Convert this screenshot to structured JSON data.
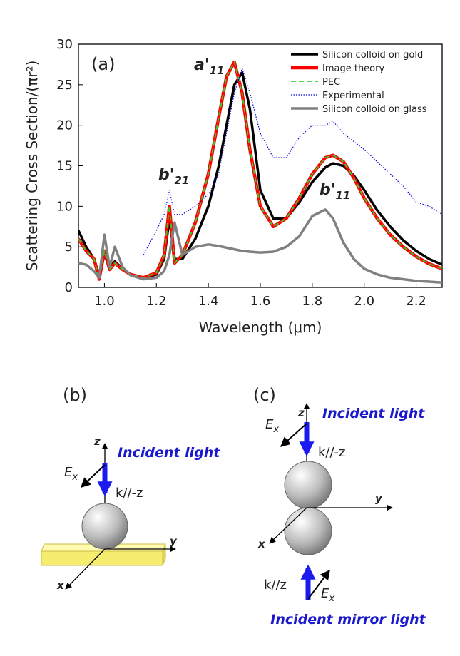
{
  "chart_data": {
    "type": "line",
    "panel_label": "(a)",
    "x_label": "Wavelength (μm)",
    "y_label": "Scattering Cross Section/(πr²)",
    "annotations": [
      {
        "main": "a'",
        "sub": "11"
      },
      {
        "main": "b'",
        "sub": "21"
      },
      {
        "main": "b'",
        "sub": "11"
      }
    ],
    "x": [
      0.9,
      0.93,
      0.96,
      0.98,
      1.0,
      1.02,
      1.04,
      1.07,
      1.1,
      1.15,
      1.2,
      1.23,
      1.25,
      1.27,
      1.3,
      1.35,
      1.4,
      1.44,
      1.47,
      1.5,
      1.53,
      1.56,
      1.6,
      1.65,
      1.7,
      1.75,
      1.8,
      1.85,
      1.88,
      1.92,
      1.96,
      2.0,
      2.05,
      2.1,
      2.15,
      2.2,
      2.25,
      2.3
    ],
    "series": [
      {
        "name": "Silicon colloid on gold",
        "color": "#000000",
        "style": "solid",
        "values": [
          7,
          5,
          3.5,
          1.5,
          4,
          2.5,
          3.2,
          2.3,
          1.6,
          1.1,
          1.6,
          3.5,
          8.5,
          3.5,
          3.5,
          6,
          10,
          15,
          20,
          25,
          26.5,
          22,
          12,
          8.5,
          8.5,
          10.5,
          13,
          14.8,
          15.3,
          15,
          13.8,
          12,
          9.5,
          7.5,
          5.8,
          4.5,
          3.5,
          2.8
        ]
      },
      {
        "name": "Image theory",
        "color": "#ff0000",
        "style": "solid",
        "values": [
          6,
          4.5,
          3.5,
          1,
          4.5,
          2.2,
          3,
          2.2,
          1.6,
          1.2,
          1.8,
          4,
          10,
          3,
          4,
          8,
          14,
          21,
          26,
          27.8,
          24,
          17,
          10,
          7.5,
          8.5,
          11,
          14,
          16,
          16.3,
          15.5,
          13.5,
          11,
          8.5,
          6.5,
          5,
          3.8,
          2.9,
          2.3
        ]
      },
      {
        "name": "PEC",
        "color": "#33cc33",
        "style": "dashed",
        "values": [
          6,
          4.5,
          3.5,
          1,
          4.5,
          2.2,
          3,
          2.2,
          1.6,
          1.2,
          1.8,
          4,
          10,
          3,
          4,
          8,
          14,
          21,
          26,
          27.8,
          24,
          17,
          10,
          7.5,
          8.5,
          11,
          14,
          16,
          16.3,
          15.5,
          13.5,
          11,
          8.5,
          6.5,
          5,
          3.8,
          2.9,
          2.3
        ]
      },
      {
        "name": "Experimental",
        "color": "#0000dd",
        "style": "dotted",
        "values": [
          null,
          null,
          null,
          null,
          null,
          null,
          null,
          null,
          null,
          4,
          7,
          9,
          12,
          9,
          9,
          10,
          11.5,
          14,
          19,
          24,
          27,
          24,
          19,
          16,
          16,
          18.5,
          20,
          20,
          20.5,
          19,
          18,
          17,
          15.5,
          14,
          12.5,
          10.5,
          10,
          9
        ]
      },
      {
        "name": "Silicon colloid on glass",
        "color": "#808080",
        "style": "solid",
        "values": [
          3,
          2.8,
          2,
          1.2,
          6.5,
          2.5,
          5,
          2.5,
          1.5,
          1,
          1.2,
          2,
          4,
          8,
          4,
          5,
          5.3,
          5.1,
          4.9,
          4.7,
          4.5,
          4.4,
          4.3,
          4.4,
          5,
          6.3,
          8.8,
          9.6,
          8.5,
          5.5,
          3.5,
          2.3,
          1.6,
          1.2,
          1,
          0.8,
          0.7,
          0.6
        ]
      }
    ],
    "xlim": [
      0.9,
      2.3
    ],
    "xticks": [
      {
        "value": 1,
        "label": "1.0"
      },
      1.2,
      1.4,
      1.6,
      1.8,
      {
        "value": 2,
        "label": "2.0"
      },
      2.2
    ],
    "ylim": [
      0,
      30
    ],
    "yticks": [
      0,
      5,
      10,
      15,
      20,
      25,
      30
    ],
    "legend": "upper right"
  },
  "panels": {
    "b": {
      "label": "(b)",
      "z": "z",
      "y": "y",
      "x": "x",
      "E_x": {
        "main": "E",
        "sub": "x"
      },
      "incident": "Incident light",
      "k": "k//-z"
    },
    "c": {
      "label": "(c)",
      "z": "z",
      "y": "y",
      "x": "x",
      "E_x": {
        "main": "E",
        "sub": "x"
      },
      "incident": "Incident light",
      "k": "k//-z",
      "mirror_E_x": {
        "main": "E",
        "sub": "x"
      },
      "mirror_k": "k//z",
      "mirror": "Incident mirror light"
    }
  }
}
